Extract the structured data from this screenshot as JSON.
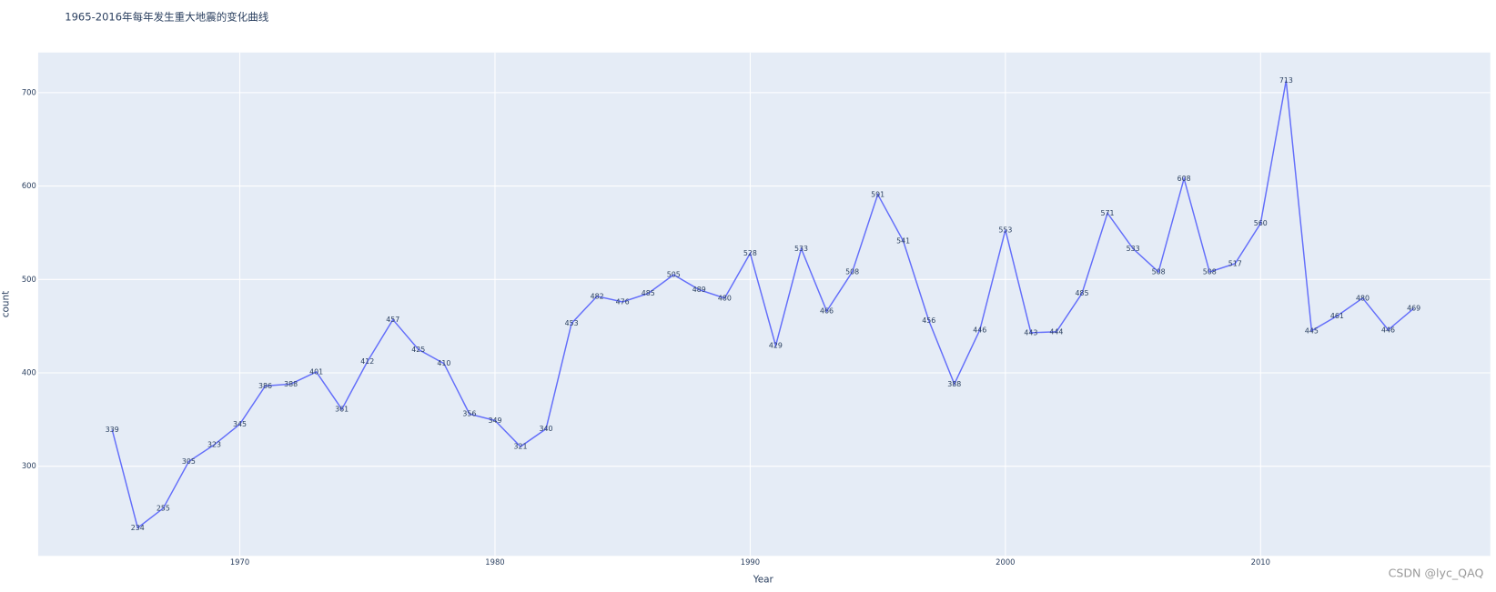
{
  "chart_data": {
    "type": "line",
    "title": "1965-2016年每年发生重大地震的变化曲线",
    "x_label": "Year",
    "y_label": "count",
    "x": [
      1965,
      1966,
      1967,
      1968,
      1969,
      1970,
      1971,
      1972,
      1973,
      1974,
      1975,
      1976,
      1977,
      1978,
      1979,
      1980,
      1981,
      1982,
      1983,
      1984,
      1985,
      1986,
      1987,
      1988,
      1989,
      1990,
      1991,
      1992,
      1993,
      1994,
      1995,
      1996,
      1997,
      1998,
      1999,
      2000,
      2001,
      2002,
      2003,
      2004,
      2005,
      2006,
      2007,
      2008,
      2009,
      2010,
      2011,
      2012,
      2013,
      2014,
      2015,
      2016
    ],
    "series": [
      {
        "name": "count",
        "color": "#636efa",
        "values": [
          339,
          234,
          255,
          305,
          323,
          345,
          386,
          388,
          401,
          361,
          412,
          457,
          425,
          410,
          356,
          349,
          321,
          340,
          453,
          482,
          476,
          485,
          505,
          489,
          480,
          528,
          429,
          533,
          466,
          508,
          591,
          541,
          456,
          388,
          446,
          553,
          443,
          444,
          485,
          571,
          533,
          508,
          608,
          508,
          517,
          560,
          713,
          445,
          461,
          480,
          446,
          469
        ]
      }
    ],
    "xlim": [
      1962.1,
      2019
    ],
    "ylim": [
      204,
      743
    ],
    "xticks": [
      1970,
      1980,
      1990,
      2000,
      2010
    ],
    "yticks": [
      300,
      400,
      500,
      600,
      700
    ],
    "grid": true,
    "background": "#e5ecf6",
    "watermark": "CSDN @lyc_QAQ"
  }
}
